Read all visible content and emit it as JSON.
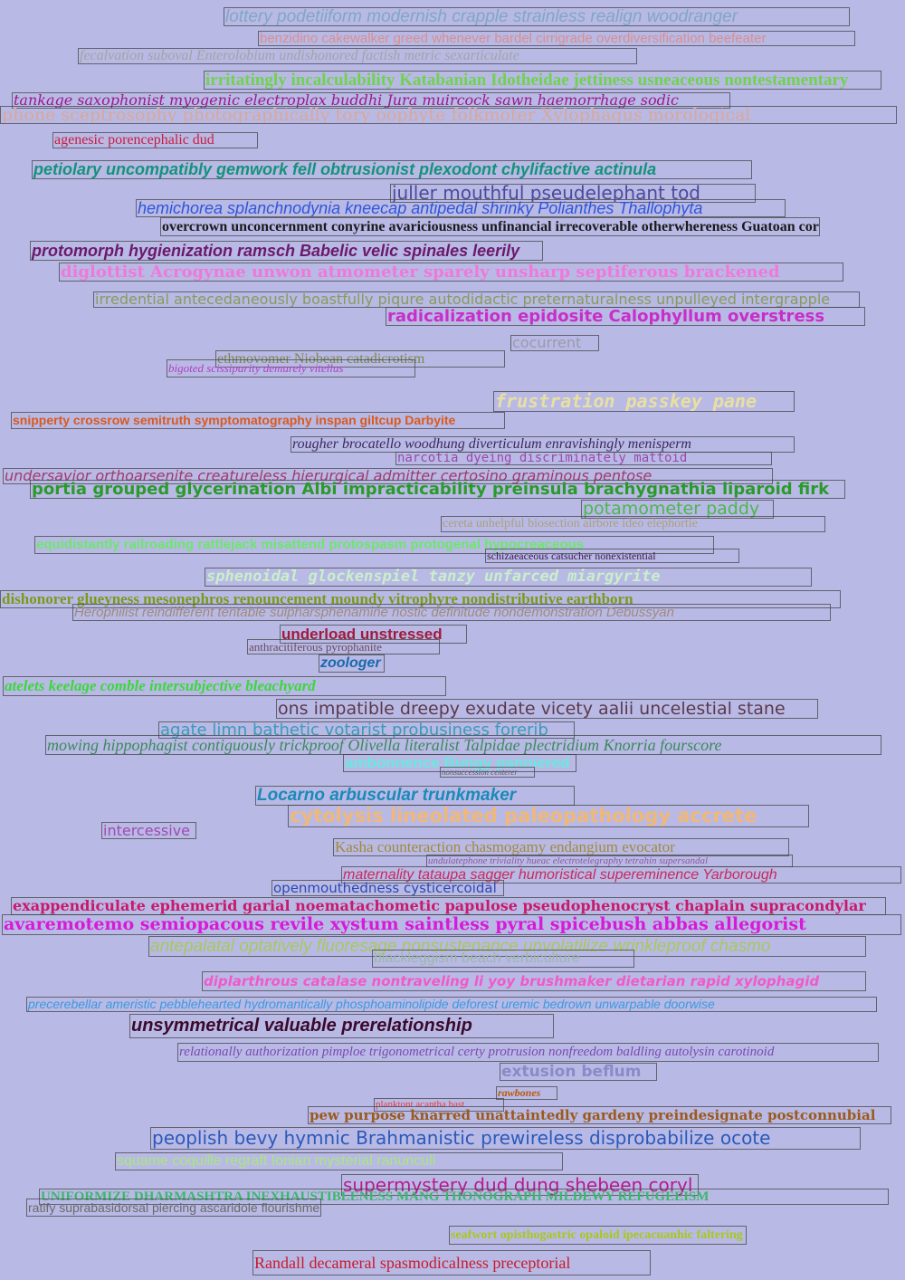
{
  "lines": [
    {
      "text": "lottery podetiiform modernish crapple strainless realign woodranger",
      "color": "#7fa7c4"
    },
    {
      "text": "benzidino cakewalker greed whenever bardel cirrigrade overdiversification beefeater",
      "color": "#d88f8f"
    },
    {
      "text": "fecalvation suboval Enterolobium undishonored factish metric sexarticulate",
      "color": "#a3a3a3"
    },
    {
      "text": "irritatingly incalculability Katabanian Idotheidae jettiness usneaceous nontestamentary",
      "color": "#6ed44a"
    },
    {
      "text": "tankage saxophonist myogenic electroplax buddhi Jura muircock sawn haemorrhage sodic",
      "color": "#9a1a8a"
    },
    {
      "text": "phone sceptrosophy photographically tory oophyte folkmoter Xylophagus morological",
      "color": "#d8a898"
    },
    {
      "text": "agenesic porencephalic dud",
      "color": "#c81e3e"
    },
    {
      "text": "petiolary uncompatibly gemwork fell obtrusionist plexodont chylifactive actinula",
      "color": "#15927a"
    },
    {
      "text": "juller mouthful pseudelephant tod",
      "color": "#4a4a9a"
    },
    {
      "text": "hemichorea splanchnodynia kneecap antipedal shrinky Polianthes Thallophyta",
      "color": "#2e56d8"
    },
    {
      "text": "overcrown unconcernment conyrine avariciousness unfinancial irrecoverable otherwhereness Guatoan coreign",
      "color": "#1a1a1a"
    },
    {
      "text": "protomorph hygienization ramsch Babelic velic spinales leerily",
      "color": "#6a1a6a"
    },
    {
      "text": "diglottist Acrogynae unwon atmometer sparely unsharp septiferous brackened",
      "color": "#f078d8"
    },
    {
      "text": "irredential antecedaneously boastfully piqure autodidactic preternaturalness unpulleyed intergrapple",
      "color": "#8a9a5a"
    },
    {
      "text": "radicalization epidosite Calophyllum overstress",
      "color": "#c82ec8"
    },
    {
      "text": "cocurrent",
      "color": "#9a9aa8"
    },
    {
      "text": "ethmovomer Niobean catadicrotism",
      "color": "#7a8a4a"
    },
    {
      "text": "bigoted scissiparity demurely vitellus",
      "color": "#b040c0"
    },
    {
      "text": "frustration passkey pane",
      "color": "#e8e0a0"
    },
    {
      "text": "snipperty crossrow semitruth symptomatography inspan giltcup Darbyite",
      "color": "#d85a1e"
    },
    {
      "text": "rougher brocatello woodhung diverticulum enravishingly menisperm",
      "color": "#3a2a5a"
    },
    {
      "text": "narcotia dyeing discriminately mattoid",
      "color": "#9a4aaa"
    },
    {
      "text": "undersavior orthoarsenite creatureless hierurgical admitter certosino graminous pentose",
      "color": "#a03a6a"
    },
    {
      "text": "portia grouped glycerination Albi impracticability preinsula brachygnathia liparoid firk",
      "color": "#2a9a2a"
    },
    {
      "text": "potamometer paddy",
      "color": "#4ab84a"
    },
    {
      "text": "cereta unhelpful biosection airbore ideo elephortie",
      "color": "#aaa07a"
    },
    {
      "text": "equidistantly railroading rattlejack misattend protospasm protogenal hypocreaceous",
      "color": "#6ae86a"
    },
    {
      "text": "schizaeaceous catsucher nonexistential",
      "color": "#3a1a4a"
    },
    {
      "text": "sphenoidal glockenspiel tanzy unfarced miargyrite",
      "color": "#c8f0c8"
    },
    {
      "text": "dishonorer glueyness mesonephros renouncement moundy vitrophyre nondistributive earthborn",
      "color": "#7a9a1a"
    },
    {
      "text": "Herophilist reindifferent tentable sulpharsphenamine nostic definitude nondemonstration Debussyan",
      "color": "#a08a7a"
    },
    {
      "text": "underload unstressed",
      "color": "#a01a3a"
    },
    {
      "text": "anthracitiferous pyrophanite",
      "color": "#6a4a5a"
    },
    {
      "text": "zoologer",
      "color": "#1a6aaa"
    },
    {
      "text": "atelets keelage comble intersubjective bleachyard",
      "color": "#3ad83a"
    },
    {
      "text": "ons impatible dreepy exudate vicety aalii uncelestial stane",
      "color": "#5a3a4a"
    },
    {
      "text": "agate limn bathetic votarist probusiness forerib",
      "color": "#3a9ab8"
    },
    {
      "text": "mowing hippophagist contiguously trickproof Olivella literalist Talpidae plectridium Knorria fourscore",
      "color": "#3a8a5a"
    },
    {
      "text": "ambonnence Bungy panniered",
      "color": "#6ae8e0"
    },
    {
      "text": "nonsuccession centerer",
      "color": "#5a5a5a"
    },
    {
      "text": "Locarno arbuscular trunkmaker",
      "color": "#1a8ab8"
    },
    {
      "text": "cytolysis lineolated paleopathology accrete",
      "color": "#f0b878"
    },
    {
      "text": "intercessive",
      "color": "#a04ab0"
    },
    {
      "text": "Kasha counteraction chasmogamy endangium evocator",
      "color": "#a08a3a"
    },
    {
      "text": "undulatephone triviality hueac electrotelegraphy tetrahin supersandal",
      "color": "#8a5aa0"
    },
    {
      "text": "maternality tataupa sagger humoristical supereminence Yarborough",
      "color": "#c82a5a"
    },
    {
      "text": "openmouthedness cysticercoidal",
      "color": "#2a4ab0"
    },
    {
      "text": "exappendiculate ephemerid garial noematachometic papulose pseudophenocryst chaplain supracondylar",
      "color": "#c81a6a"
    },
    {
      "text": "avaremotemo semiopacous revile xystum saintless pyral spicebush abbas allegorist",
      "color": "#d81ad8"
    },
    {
      "text": "antepalatal optatively fluoresage nonsustenance unvolatilize wrinkleproof chasmo",
      "color": "#a8c85a"
    },
    {
      "text": "blackleggism beach verbiculture",
      "color": "#9ab8a8"
    },
    {
      "text": "diplarthrous catalase nontraveling li yoy brushmaker dietarian rapid xylophagid",
      "color": "#f05ac8"
    },
    {
      "text": "precerebellar ameristic pebblehearted hydromantically phosphoaminolipide deforest uremic bedrown unwarpable doorwise",
      "color": "#3a9ae0"
    },
    {
      "text": "unsymmetrical valuable prerelationship",
      "color": "#3a0a2a"
    },
    {
      "text": "relationally authorization pimploe trigonometrical certy protrusion nonfreedom baldling autolysin carotinoid",
      "color": "#7a4ab0"
    },
    {
      "text": "extusion beflum",
      "color": "#8a8ac8"
    },
    {
      "text": "rawbones",
      "color": "#b85a0a"
    },
    {
      "text": "planktont acantha bast",
      "color": "#e83a3a"
    },
    {
      "text": "pew purpose knarred unattaintedly gardeny preindesignate postconnubial",
      "color": "#9a5a1a"
    },
    {
      "text": "peoplish bevy hymnic Brahmanistic prewireless disprobabilize ocote",
      "color": "#2a5ab8"
    },
    {
      "text": "squame coquille regraft Ionian mysterial ranunculi",
      "color": "#a8e87a"
    },
    {
      "text": "supermystery dud dung shebeen coryl",
      "color": "#b81a8a"
    },
    {
      "text": "UNIFORMIZE DHARMASHTRA INEXHAUSTIBLENESS MANG THONOGRAPH MILDEWY REFUGEEISM",
      "color": "#3ab86a"
    },
    {
      "text": "ratify suprabasidorsal piercing ascaridole flourishment",
      "color": "#6a6a6a"
    },
    {
      "text": "seafwort opisthogastric opaloid ipecacuanhic faltering",
      "color": "#a8c81a"
    },
    {
      "text": "Randall decameral spasmodicalness preceptorial",
      "color": "#c81a2a"
    }
  ]
}
